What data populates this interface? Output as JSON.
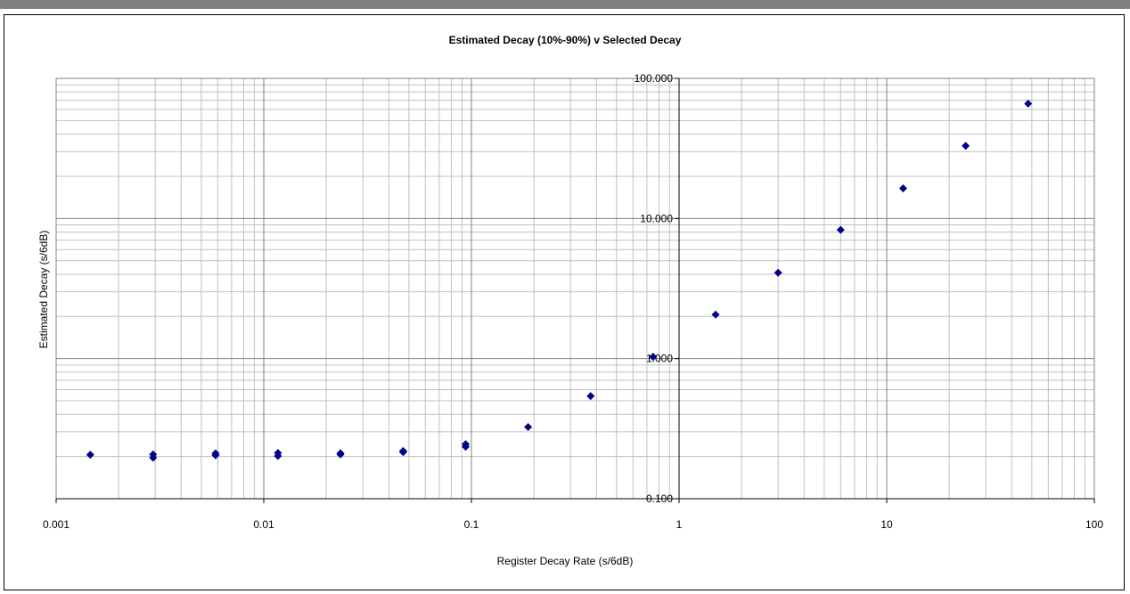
{
  "chart_data": {
    "type": "scatter",
    "title": "Estimated Decay (10%-90%) v Selected Decay",
    "xlabel": "Register Decay Rate (s/6dB)",
    "ylabel": "Estimated Decay (s/6dB)",
    "x_scale": "log",
    "y_scale": "log",
    "xlim": [
      0.001,
      100
    ],
    "ylim": [
      0.1,
      100
    ],
    "x_ticks": [
      "0.001",
      "0.01",
      "0.1",
      "1",
      "10",
      "100"
    ],
    "y_ticks": [
      "0.100",
      "1.000",
      "10.000",
      "100.000"
    ],
    "grid": true,
    "marker_color": "#00008B",
    "points": [
      {
        "x": 0.00146,
        "y": 0.206
      },
      {
        "x": 0.00293,
        "y": 0.196
      },
      {
        "x": 0.00293,
        "y": 0.207
      },
      {
        "x": 0.00586,
        "y": 0.204
      },
      {
        "x": 0.00586,
        "y": 0.211
      },
      {
        "x": 0.0117,
        "y": 0.202
      },
      {
        "x": 0.0117,
        "y": 0.212
      },
      {
        "x": 0.0234,
        "y": 0.207
      },
      {
        "x": 0.0234,
        "y": 0.211
      },
      {
        "x": 0.0469,
        "y": 0.215
      },
      {
        "x": 0.0469,
        "y": 0.219
      },
      {
        "x": 0.0938,
        "y": 0.235
      },
      {
        "x": 0.0938,
        "y": 0.245
      },
      {
        "x": 0.1875,
        "y": 0.325
      },
      {
        "x": 0.375,
        "y": 0.54
      },
      {
        "x": 0.75,
        "y": 1.03
      },
      {
        "x": 1.5,
        "y": 2.06
      },
      {
        "x": 3.0,
        "y": 4.1
      },
      {
        "x": 6.0,
        "y": 8.3
      },
      {
        "x": 12.0,
        "y": 16.4
      },
      {
        "x": 24.0,
        "y": 33.0
      },
      {
        "x": 48.0,
        "y": 66.0
      }
    ]
  }
}
